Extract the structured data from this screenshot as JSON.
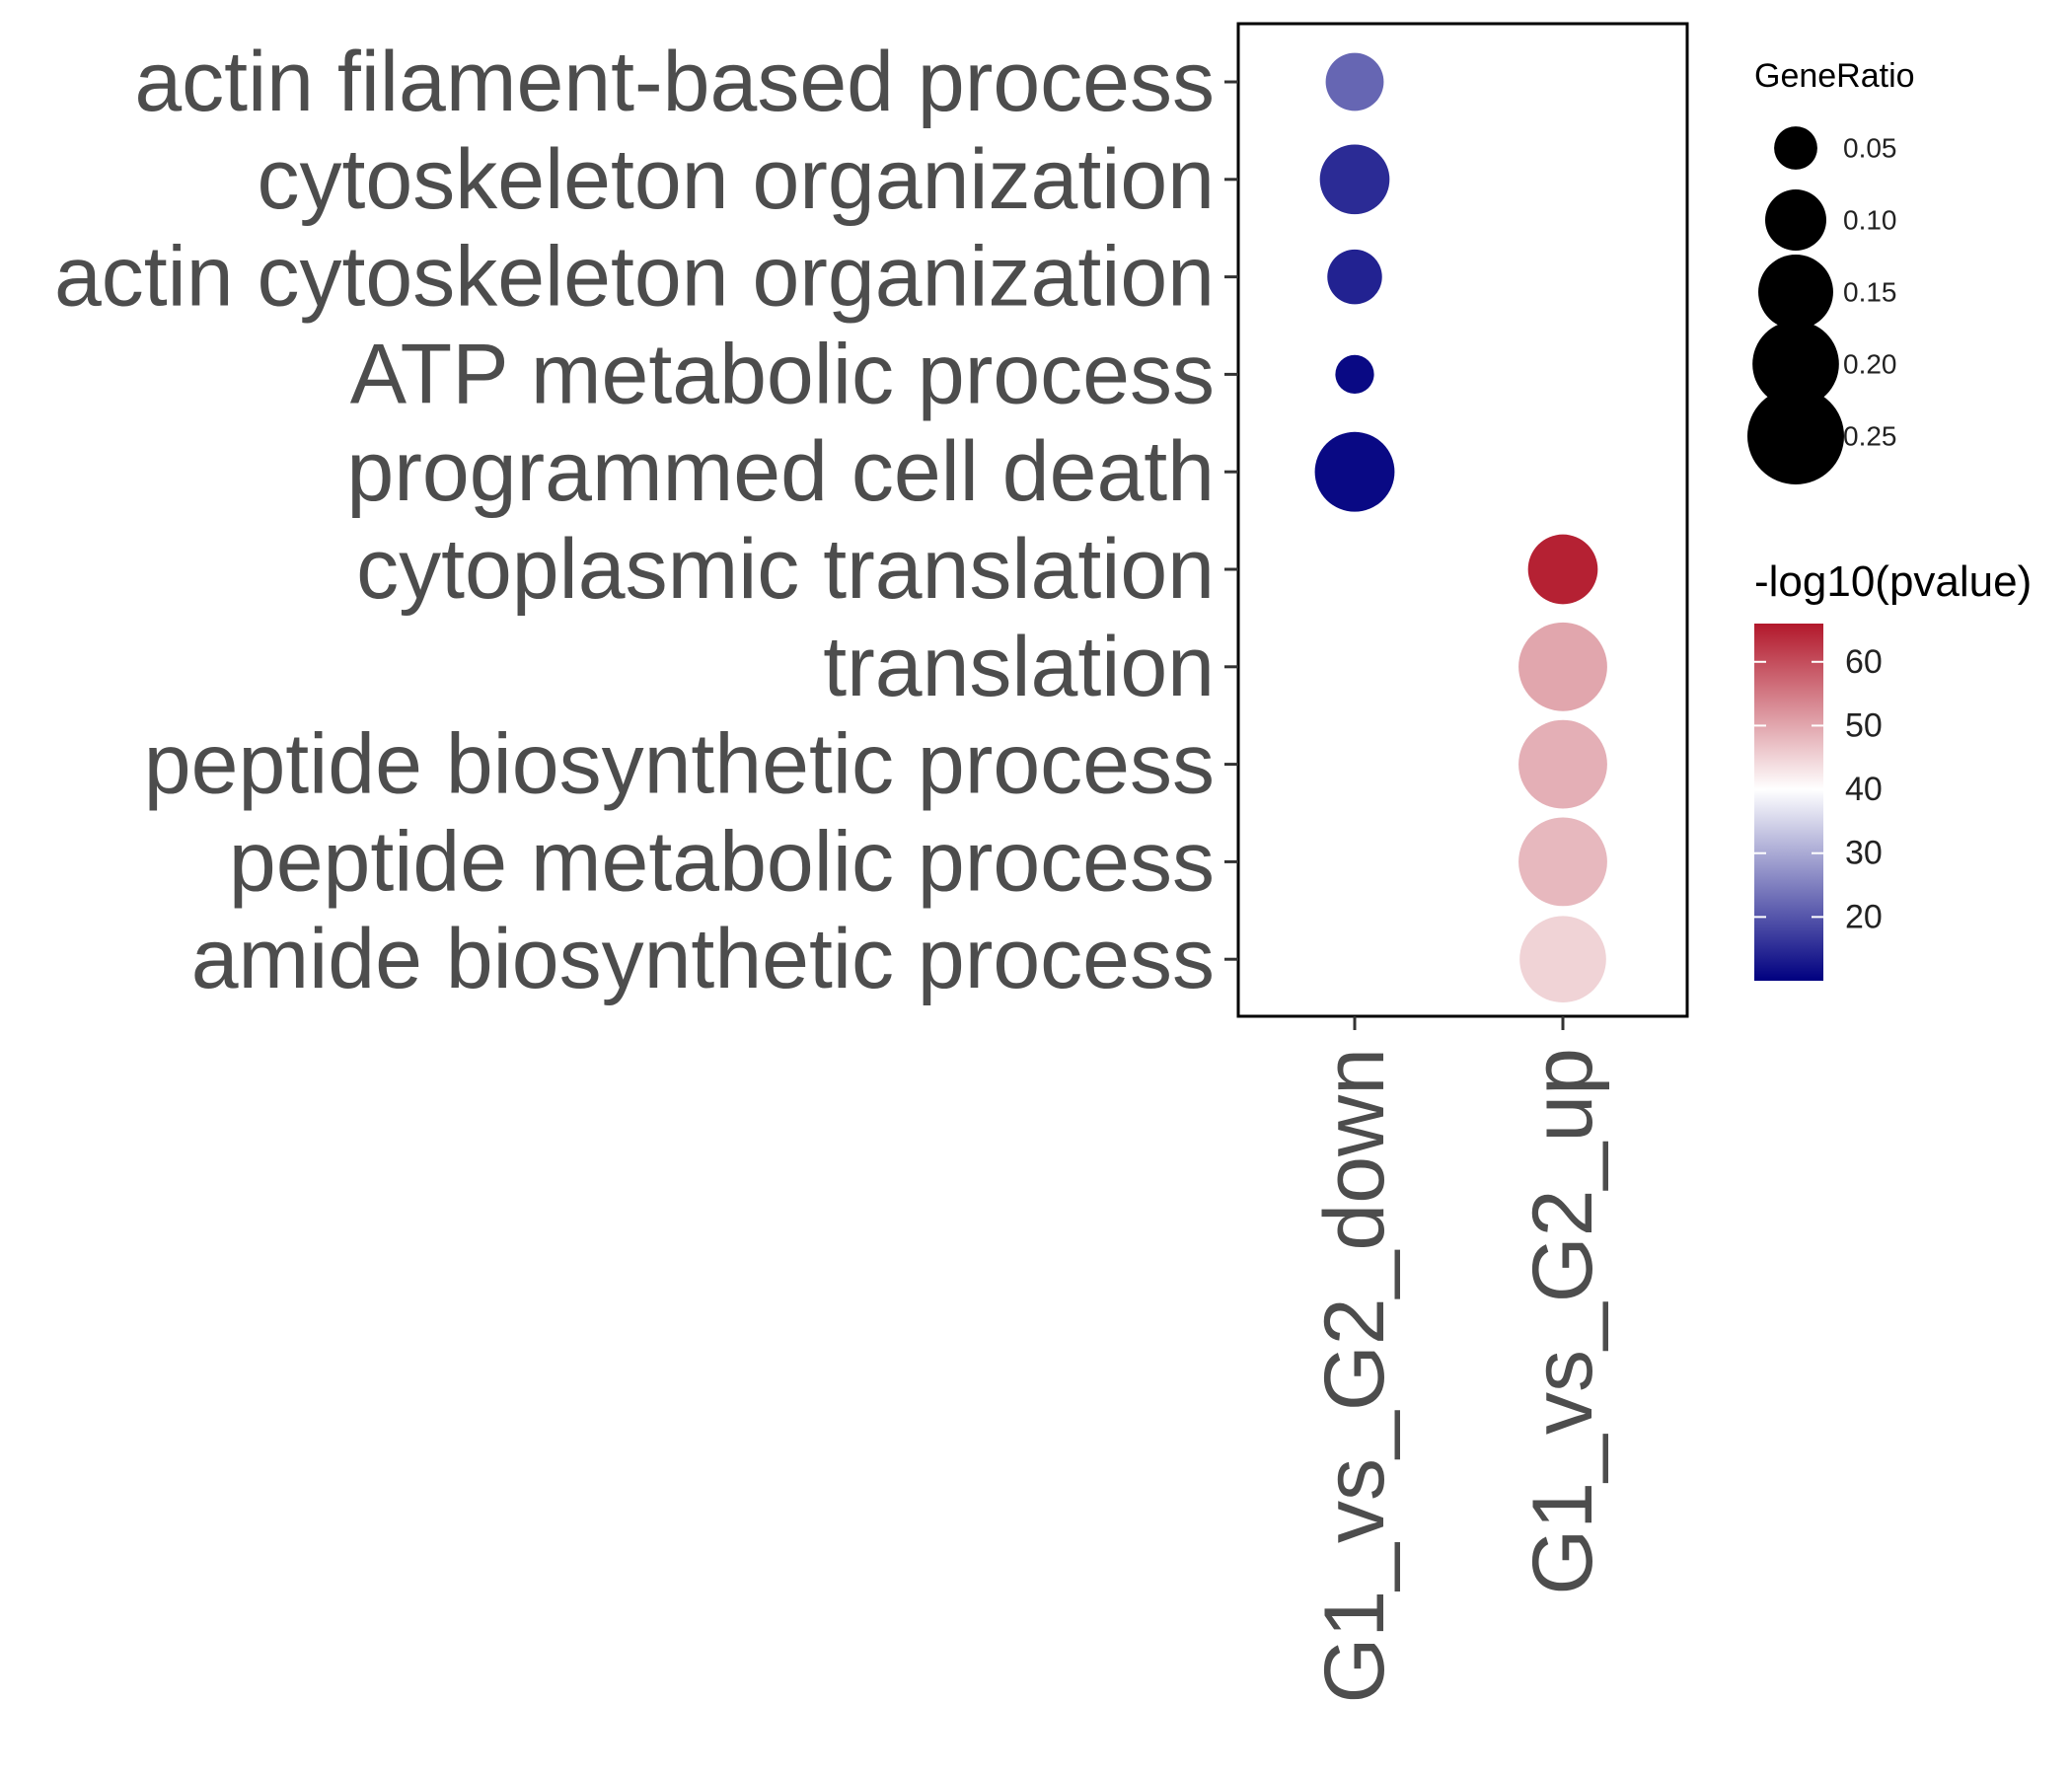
{
  "chart_data": {
    "type": "scatter",
    "subtype": "dot-plot",
    "title": "",
    "xlabel": "",
    "ylabel": "",
    "x_categories": [
      "G1_vs_G2_down",
      "G1_vs_G2_up"
    ],
    "y_categories": [
      "actin filament-based process",
      "cytoskeleton organization",
      "actin cytoskeleton organization",
      "ATP metabolic process",
      "programmed cell death",
      "cytoplasmic translation",
      "translation",
      "peptide biosynthetic process",
      "peptide metabolic process",
      "amide biosynthetic process"
    ],
    "points": [
      {
        "x": "G1_vs_G2_down",
        "y": "actin filament-based process",
        "gene_ratio": 0.09,
        "neg_log10_pvalue": 22
      },
      {
        "x": "G1_vs_G2_down",
        "y": "cytoskeleton organization",
        "gene_ratio": 0.13,
        "neg_log10_pvalue": 15
      },
      {
        "x": "G1_vs_G2_down",
        "y": "actin cytoskeleton organization",
        "gene_ratio": 0.08,
        "neg_log10_pvalue": 14
      },
      {
        "x": "G1_vs_G2_down",
        "y": "ATP metabolic process",
        "gene_ratio": 0.04,
        "neg_log10_pvalue": 11
      },
      {
        "x": "G1_vs_G2_down",
        "y": "programmed cell death",
        "gene_ratio": 0.17,
        "neg_log10_pvalue": 11
      },
      {
        "x": "G1_vs_G2_up",
        "y": "cytoplasmic translation",
        "gene_ratio": 0.13,
        "neg_log10_pvalue": 65
      },
      {
        "x": "G1_vs_G2_up",
        "y": "translation",
        "gene_ratio": 0.21,
        "neg_log10_pvalue": 50
      },
      {
        "x": "G1_vs_G2_up",
        "y": "peptide biosynthetic process",
        "gene_ratio": 0.21,
        "neg_log10_pvalue": 49
      },
      {
        "x": "G1_vs_G2_up",
        "y": "peptide metabolic process",
        "gene_ratio": 0.21,
        "neg_log10_pvalue": 48
      },
      {
        "x": "G1_vs_G2_up",
        "y": "amide biosynthetic process",
        "gene_ratio": 0.2,
        "neg_log10_pvalue": 45
      }
    ],
    "size_legend": {
      "title": "GeneRatio",
      "breaks": [
        0.05,
        0.1,
        0.15,
        0.2,
        0.25
      ],
      "labels": [
        "0.05",
        "0.10",
        "0.15",
        "0.20",
        "0.25"
      ]
    },
    "color_legend": {
      "title": "-log10(pvalue)",
      "min": 10,
      "max": 66,
      "midpoint": 40,
      "low_color": "#000080",
      "mid_color": "#ffffff",
      "high_color": "#b2182b",
      "breaks": [
        20,
        30,
        40,
        50,
        60
      ],
      "labels": [
        "20",
        "30",
        "40",
        "50",
        "60"
      ]
    },
    "grid": false,
    "legend_placement": "right"
  }
}
